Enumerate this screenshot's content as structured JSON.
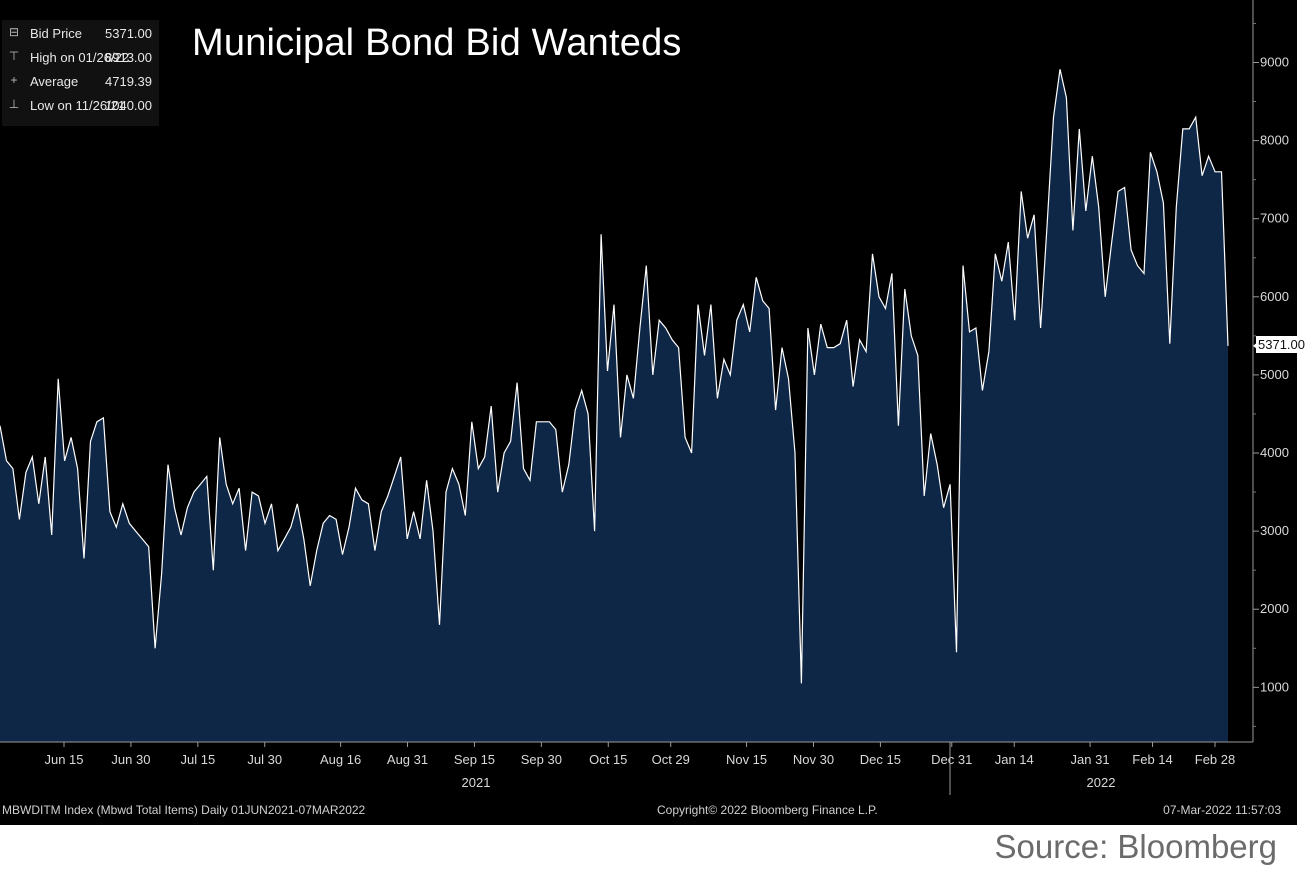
{
  "chart_data": {
    "type": "area",
    "title": "Municipal Bond Bid Wanteds",
    "series_name": "Bid Price",
    "colors": {
      "line": "#ffffff",
      "fill": "#0e2747",
      "background": "#000000"
    },
    "x_ticks": [
      {
        "label": "Jun 15",
        "t": 14
      },
      {
        "label": "Jun 30",
        "t": 29
      },
      {
        "label": "Jul 15",
        "t": 44
      },
      {
        "label": "Jul 30",
        "t": 59
      },
      {
        "label": "Aug 16",
        "t": 76
      },
      {
        "label": "Aug 31",
        "t": 91
      },
      {
        "label": "Sep 15",
        "t": 106
      },
      {
        "label": "Sep 30",
        "t": 121
      },
      {
        "label": "Oct 15",
        "t": 136
      },
      {
        "label": "Oct 29",
        "t": 150
      },
      {
        "label": "Nov 15",
        "t": 167
      },
      {
        "label": "Nov 30",
        "t": 182
      },
      {
        "label": "Dec 15",
        "t": 197
      },
      {
        "label": "Dec 31",
        "t": 213
      },
      {
        "label": "Jan 14",
        "t": 227
      },
      {
        "label": "Jan 31",
        "t": 244
      },
      {
        "label": "Feb 14",
        "t": 258
      },
      {
        "label": "Feb 28",
        "t": 272
      }
    ],
    "year_labels": [
      {
        "label": "2021",
        "t": 106
      },
      {
        "label": "2022",
        "t": 250
      }
    ],
    "y_ticks": [
      1000,
      2000,
      3000,
      4000,
      5000,
      6000,
      7000,
      8000,
      9000
    ],
    "y_range": [
      300,
      9800
    ],
    "x_range": [
      0,
      281
    ],
    "points": [
      [
        0,
        4350
      ],
      [
        1,
        3900
      ],
      [
        2,
        3800
      ],
      [
        3,
        3150
      ],
      [
        4,
        3750
      ],
      [
        5,
        3950
      ],
      [
        6,
        3350
      ],
      [
        7,
        3950
      ],
      [
        8,
        2950
      ],
      [
        9,
        4950
      ],
      [
        10,
        3900
      ],
      [
        11,
        4200
      ],
      [
        12,
        3800
      ],
      [
        13,
        2650
      ],
      [
        14,
        4150
      ],
      [
        15,
        4400
      ],
      [
        16,
        4450
      ],
      [
        17,
        3250
      ],
      [
        18,
        3050
      ],
      [
        19,
        3350
      ],
      [
        20,
        3100
      ],
      [
        21,
        3000
      ],
      [
        22,
        2900
      ],
      [
        23,
        2800
      ],
      [
        24,
        1500
      ],
      [
        25,
        2450
      ],
      [
        26,
        3850
      ],
      [
        27,
        3300
      ],
      [
        28,
        2950
      ],
      [
        29,
        3300
      ],
      [
        30,
        3500
      ],
      [
        31,
        3600
      ],
      [
        32,
        3700
      ],
      [
        33,
        2500
      ],
      [
        34,
        4200
      ],
      [
        35,
        3600
      ],
      [
        36,
        3350
      ],
      [
        37,
        3550
      ],
      [
        38,
        2750
      ],
      [
        39,
        3500
      ],
      [
        40,
        3450
      ],
      [
        41,
        3100
      ],
      [
        42,
        3350
      ],
      [
        43,
        2750
      ],
      [
        44,
        2900
      ],
      [
        45,
        3050
      ],
      [
        46,
        3350
      ],
      [
        47,
        2900
      ],
      [
        48,
        2300
      ],
      [
        49,
        2750
      ],
      [
        50,
        3100
      ],
      [
        51,
        3200
      ],
      [
        52,
        3150
      ],
      [
        53,
        2700
      ],
      [
        54,
        3050
      ],
      [
        55,
        3550
      ],
      [
        56,
        3400
      ],
      [
        57,
        3350
      ],
      [
        58,
        2750
      ],
      [
        59,
        3250
      ],
      [
        60,
        3450
      ],
      [
        61,
        3700
      ],
      [
        62,
        3950
      ],
      [
        63,
        2900
      ],
      [
        64,
        3250
      ],
      [
        65,
        2900
      ],
      [
        66,
        3650
      ],
      [
        67,
        3000
      ],
      [
        68,
        1800
      ],
      [
        69,
        3500
      ],
      [
        70,
        3800
      ],
      [
        71,
        3600
      ],
      [
        72,
        3200
      ],
      [
        73,
        4400
      ],
      [
        74,
        3800
      ],
      [
        75,
        3950
      ],
      [
        76,
        4600
      ],
      [
        77,
        3500
      ],
      [
        78,
        4000
      ],
      [
        79,
        4150
      ],
      [
        80,
        4900
      ],
      [
        81,
        3800
      ],
      [
        82,
        3650
      ],
      [
        83,
        4400
      ],
      [
        84,
        4400
      ],
      [
        85,
        4400
      ],
      [
        86,
        4300
      ],
      [
        87,
        3500
      ],
      [
        88,
        3850
      ],
      [
        89,
        4550
      ],
      [
        90,
        4800
      ],
      [
        91,
        4500
      ],
      [
        92,
        3000
      ],
      [
        93,
        6800
      ],
      [
        94,
        5050
      ],
      [
        95,
        5900
      ],
      [
        96,
        4200
      ],
      [
        97,
        5000
      ],
      [
        98,
        4700
      ],
      [
        99,
        5600
      ],
      [
        100,
        6400
      ],
      [
        101,
        5000
      ],
      [
        102,
        5700
      ],
      [
        103,
        5600
      ],
      [
        104,
        5450
      ],
      [
        105,
        5350
      ],
      [
        106,
        4200
      ],
      [
        107,
        4000
      ],
      [
        108,
        5900
      ],
      [
        109,
        5250
      ],
      [
        110,
        5900
      ],
      [
        111,
        4700
      ],
      [
        112,
        5200
      ],
      [
        113,
        5000
      ],
      [
        114,
        5700
      ],
      [
        115,
        5900
      ],
      [
        116,
        5550
      ],
      [
        117,
        6250
      ],
      [
        118,
        5950
      ],
      [
        119,
        5850
      ],
      [
        120,
        4550
      ],
      [
        121,
        5350
      ],
      [
        122,
        4950
      ],
      [
        123,
        4000
      ],
      [
        124,
        1050
      ],
      [
        125,
        5600
      ],
      [
        126,
        5000
      ],
      [
        127,
        5650
      ],
      [
        128,
        5350
      ],
      [
        129,
        5350
      ],
      [
        130,
        5400
      ],
      [
        131,
        5700
      ],
      [
        132,
        4850
      ],
      [
        133,
        5450
      ],
      [
        134,
        5300
      ],
      [
        135,
        6550
      ],
      [
        136,
        6000
      ],
      [
        137,
        5850
      ],
      [
        138,
        6300
      ],
      [
        139,
        4350
      ],
      [
        140,
        6100
      ],
      [
        141,
        5500
      ],
      [
        142,
        5250
      ],
      [
        143,
        3450
      ],
      [
        144,
        4250
      ],
      [
        145,
        3850
      ],
      [
        146,
        3300
      ],
      [
        147,
        3600
      ],
      [
        148,
        1450
      ],
      [
        149,
        6400
      ],
      [
        150,
        5550
      ],
      [
        151,
        5600
      ],
      [
        152,
        4800
      ],
      [
        153,
        5300
      ],
      [
        154,
        6550
      ],
      [
        155,
        6200
      ],
      [
        156,
        6700
      ],
      [
        157,
        5700
      ],
      [
        158,
        7350
      ],
      [
        159,
        6750
      ],
      [
        160,
        7050
      ],
      [
        161,
        5600
      ],
      [
        162,
        6900
      ],
      [
        163,
        8300
      ],
      [
        164,
        8913
      ],
      [
        165,
        8550
      ],
      [
        166,
        6850
      ],
      [
        167,
        8150
      ],
      [
        168,
        7100
      ],
      [
        169,
        7800
      ],
      [
        170,
        7150
      ],
      [
        171,
        6000
      ],
      [
        172,
        6700
      ],
      [
        173,
        7350
      ],
      [
        174,
        7400
      ],
      [
        175,
        6600
      ],
      [
        176,
        6400
      ],
      [
        177,
        6300
      ],
      [
        178,
        7850
      ],
      [
        179,
        7600
      ],
      [
        180,
        7200
      ],
      [
        181,
        5400
      ],
      [
        182,
        7150
      ],
      [
        183,
        8150
      ],
      [
        184,
        8150
      ],
      [
        185,
        8300
      ],
      [
        186,
        7550
      ],
      [
        187,
        7800
      ],
      [
        188,
        7600
      ],
      [
        189,
        7600
      ],
      [
        190,
        5371
      ]
    ],
    "legend": [
      {
        "marker": "square",
        "label": "Bid Price",
        "value": "5371.00"
      },
      {
        "marker": "high",
        "label": "High on 01/26/22",
        "value": "8913.00"
      },
      {
        "marker": "avg",
        "label": "Average",
        "value": "4719.39"
      },
      {
        "marker": "low",
        "label": "Low on 11/26/21",
        "value": "1040.00"
      }
    ],
    "last_value_label": "5371.00",
    "grid": false
  },
  "footer": {
    "left": "MBWDITM Index (Mbwd Total Items)  Daily 01JUN2021-07MAR2022",
    "middle": "Copyright© 2022 Bloomberg Finance L.P.",
    "right": "07-Mar-2022 11:57:03"
  },
  "source_text": "Source: Bloomberg"
}
